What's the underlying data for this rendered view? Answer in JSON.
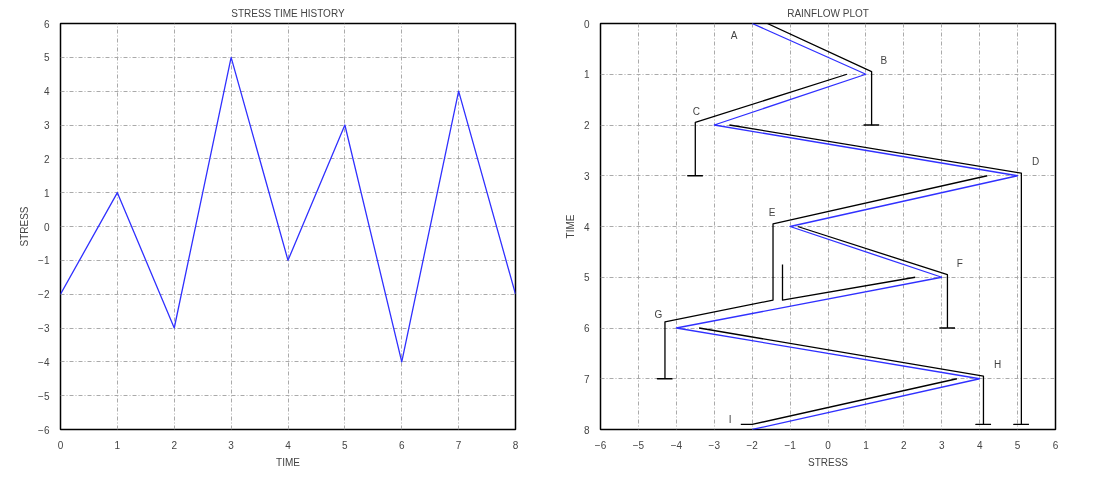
{
  "chart_data": [
    {
      "type": "line",
      "title": "STRESS TIME HISTORY",
      "xlabel": "TIME",
      "ylabel": "STRESS",
      "x": [
        0,
        1,
        2,
        3,
        4,
        5,
        6,
        7,
        8
      ],
      "series": [
        {
          "color": "#3030ff",
          "values": [
            -2,
            1,
            -3,
            5,
            -1,
            3,
            -4,
            4,
            -2
          ]
        }
      ],
      "xlim": [
        0,
        8
      ],
      "ylim": [
        -6,
        6
      ],
      "xticks": [
        0,
        1,
        2,
        3,
        4,
        5,
        6,
        7,
        8
      ],
      "yticks": [
        -6,
        -5,
        -4,
        -3,
        -2,
        -1,
        0,
        1,
        2,
        3,
        4,
        5,
        6
      ],
      "grid": true,
      "marker": "none",
      "line_style": "solid"
    },
    {
      "type": "line",
      "title": "RAINFLOW PLOT",
      "xlabel": "STRESS",
      "ylabel": "TIME",
      "series": [
        {
          "color": "#3030ff",
          "x": [
            -2,
            1,
            -3,
            5,
            -1,
            3,
            -4,
            4,
            -2
          ],
          "values": [
            0,
            1,
            2,
            3,
            4,
            5,
            6,
            7,
            8
          ]
        },
        {
          "color": "#000000",
          "x": [
            -1.6,
            1.15,
            1.15,
            0.95,
            1.35
          ],
          "values": [
            0,
            0.95,
            2.0,
            2.0,
            2.0
          ]
        },
        {
          "color": "#000000",
          "x": [
            0.5,
            -3.5,
            -3.5,
            -3.7,
            -3.3
          ],
          "values": [
            1.0,
            1.95,
            3.0,
            3.0,
            3.0
          ]
        },
        {
          "color": "#000000",
          "x": [
            -2.6,
            5.1,
            5.1,
            4.9,
            5.3
          ],
          "values": [
            2.0,
            2.95,
            7.9,
            7.9,
            7.9
          ]
        },
        {
          "color": "#000000",
          "x": [
            4.2,
            -1.45,
            -1.45,
            -4.3,
            -4.3,
            -4.5,
            -4.1
          ],
          "values": [
            3.0,
            3.95,
            5.45,
            5.88,
            7.0,
            7.0,
            7.0
          ]
        },
        {
          "color": "#000000",
          "x": [
            -0.8,
            3.15,
            3.15,
            2.95,
            3.35
          ],
          "values": [
            4.0,
            4.95,
            6.0,
            6.0,
            6.0
          ]
        },
        {
          "color": "#000000",
          "x": [
            2.3,
            -1.2,
            -1.2
          ],
          "values": [
            5.0,
            5.45,
            4.75
          ]
        },
        {
          "color": "#000000",
          "x": [
            -3.4,
            4.1,
            4.1,
            3.9,
            4.3
          ],
          "values": [
            6.0,
            6.95,
            7.9,
            7.9,
            7.9
          ]
        },
        {
          "color": "#000000",
          "x": [
            3.4,
            -2.0,
            -2.3
          ],
          "values": [
            7.0,
            7.9,
            7.9
          ]
        }
      ],
      "annotations": [
        {
          "text": "A",
          "x": -2,
          "y": 0
        },
        {
          "text": "B",
          "x": 1,
          "y": 1
        },
        {
          "text": "C",
          "x": -3,
          "y": 2
        },
        {
          "text": "D",
          "x": 5,
          "y": 3
        },
        {
          "text": "E",
          "x": -1,
          "y": 4
        },
        {
          "text": "F",
          "x": 3,
          "y": 5
        },
        {
          "text": "G",
          "x": -4,
          "y": 6
        },
        {
          "text": "H",
          "x": 4,
          "y": 7
        },
        {
          "text": "I",
          "x": -2,
          "y": 8
        }
      ],
      "xlim": [
        -6,
        6
      ],
      "ylim": [
        8,
        0
      ],
      "xticks": [
        -6,
        -5,
        -4,
        -3,
        -2,
        -1,
        0,
        1,
        2,
        3,
        4,
        5,
        6
      ],
      "yticks": [
        0,
        1,
        2,
        3,
        4,
        5,
        6,
        7,
        8
      ],
      "grid": true,
      "marker": "none",
      "line_style": "solid"
    }
  ]
}
